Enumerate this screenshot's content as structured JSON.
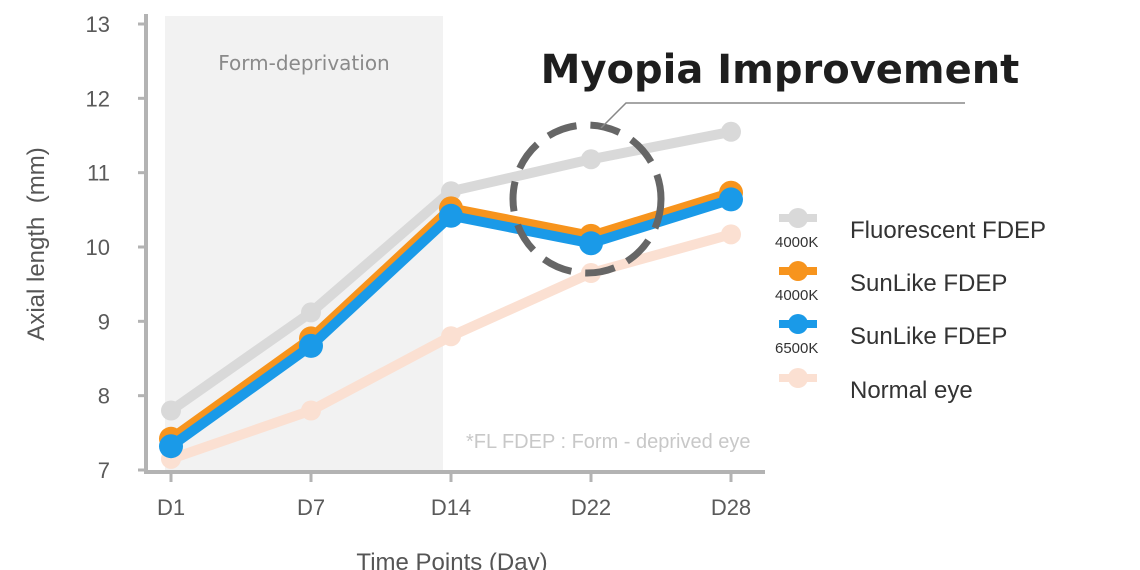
{
  "chart_data": {
    "type": "line",
    "title": "Myopia Improvement",
    "xlabel": "Time Points (Day)",
    "ylabel": "Axial length  (mm)",
    "categories": [
      "D1",
      "D7",
      "D14",
      "D22",
      "D28"
    ],
    "ylim": [
      7,
      13
    ],
    "yticks": [
      "7",
      "8",
      "9",
      "10",
      "11",
      "12",
      "13"
    ],
    "grid": false,
    "shaded_region": {
      "label": "Form-deprivation",
      "from": "D1",
      "to": "D14"
    },
    "annotation": "*FL FDEP : Form - deprived eye",
    "highlight": {
      "at": "D22",
      "label": "Myopia Improvement"
    },
    "series": [
      {
        "name": "Normal eye",
        "sub": "",
        "color": "#fbe0d2",
        "values": [
          7.15,
          7.8,
          8.8,
          9.65,
          10.17
        ]
      },
      {
        "name": "Fluorescent FDEP",
        "sub": "4000K",
        "color": "#d9d9d9",
        "values": [
          7.8,
          9.12,
          10.75,
          11.18,
          11.55
        ]
      },
      {
        "name": "SunLike FDEP",
        "sub": "4000K",
        "color": "#f7941d",
        "values": [
          7.42,
          8.77,
          10.52,
          10.15,
          10.73
        ]
      },
      {
        "name": "SunLike FDEP",
        "sub": "6500K",
        "color": "#1a9ae8",
        "values": [
          7.32,
          8.67,
          10.42,
          10.05,
          10.64
        ]
      }
    ]
  }
}
